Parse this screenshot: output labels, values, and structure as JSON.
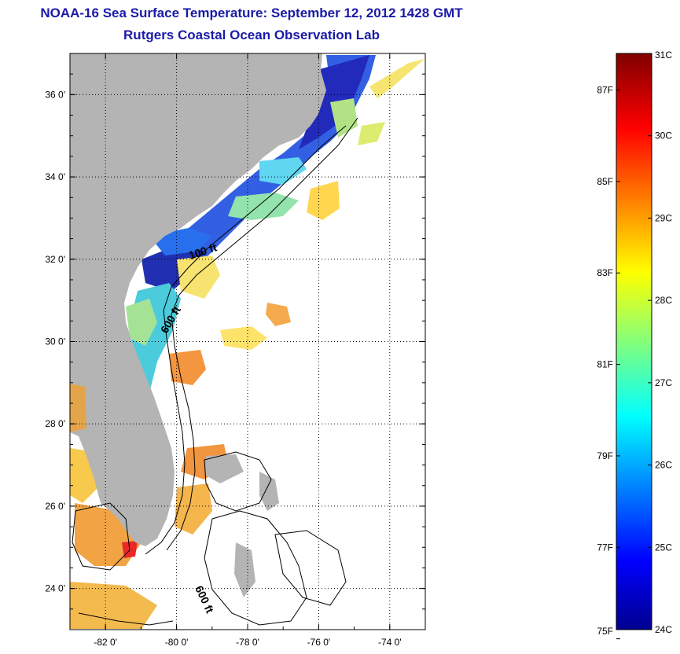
{
  "header": {
    "title": "NOAA-16 Sea Surface Temperature:  September 12, 2012 1428 GMT",
    "subtitle": "Rutgers Coastal Ocean Observation Lab"
  },
  "map": {
    "lon_range": [
      -83,
      -73
    ],
    "lat_range": [
      23,
      37
    ],
    "lon_ticks": [
      {
        "value": -82,
        "label": "-82 0'"
      },
      {
        "value": -80,
        "label": "-80 0'"
      },
      {
        "value": -78,
        "label": "-78 0'"
      },
      {
        "value": -76,
        "label": "-76 0'"
      },
      {
        "value": -74,
        "label": "-74 0'"
      }
    ],
    "lat_ticks": [
      {
        "value": 24,
        "label": "24 0'"
      },
      {
        "value": 26,
        "label": "26 0'"
      },
      {
        "value": 28,
        "label": "28 0'"
      },
      {
        "value": 30,
        "label": "30 0'"
      },
      {
        "value": 32,
        "label": "32 0'"
      },
      {
        "value": 34,
        "label": "34 0'"
      },
      {
        "value": 36,
        "label": "36 0'"
      }
    ],
    "contour_labels": [
      "100 ft",
      "600 ft",
      "600 ft"
    ],
    "colors": {
      "land": "#b4b4b4",
      "ocean_no_data": "#ffffff"
    }
  },
  "colorbar": {
    "celsius_labels": [
      "31C",
      "30C",
      "29C",
      "28C",
      "27C",
      "26C",
      "25C",
      "24C"
    ],
    "fahrenheit_labels": [
      "87F",
      "85F",
      "83F",
      "81F",
      "79F",
      "77F",
      "75F"
    ],
    "celsius_values": [
      31,
      30,
      29,
      28,
      27,
      26,
      25,
      24
    ],
    "fahrenheit_values": [
      87,
      85,
      83,
      81,
      79,
      77,
      75
    ],
    "range_c": [
      24,
      31
    ]
  }
}
